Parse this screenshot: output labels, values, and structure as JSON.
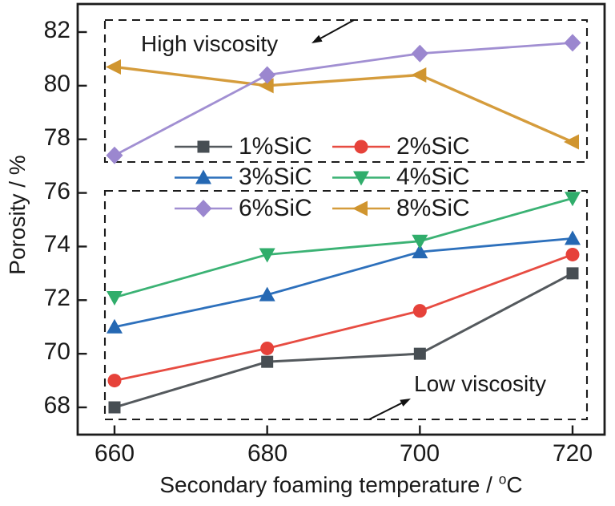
{
  "chart_data": {
    "type": "line",
    "title": "",
    "xlabel": "Secondary foaming temperature / °C",
    "xlabel_parts": {
      "prefix": "Secondary foaming temperature / ",
      "sup": "o",
      "unit": "C"
    },
    "ylabel": "Porosity / %",
    "x": [
      660,
      680,
      700,
      720
    ],
    "x_tick_labels": [
      "660",
      "680",
      "700",
      "720"
    ],
    "y_ticks": [
      82,
      80,
      78,
      76,
      74,
      72,
      70,
      68
    ],
    "y_tick_labels": [
      "82",
      "80",
      "78",
      "76",
      "74",
      "72",
      "70",
      "68"
    ],
    "xlim": [
      655,
      724
    ],
    "ylim": [
      67,
      83
    ],
    "grid": false,
    "legend_position": "inside middle, two columns",
    "series": [
      {
        "name": "1%SiC",
        "color": "#54595d",
        "marker_color": "#474e53",
        "marker": "square",
        "values": [
          68.0,
          69.7,
          70.0,
          73.0
        ]
      },
      {
        "name": "2%SiC",
        "color": "#e74c42",
        "marker_color": "#e6423a",
        "marker": "circle",
        "values": [
          69.0,
          70.2,
          71.6,
          73.7
        ]
      },
      {
        "name": "3%SiC",
        "color": "#2d70bc",
        "marker_color": "#2568b3",
        "marker": "triangle-up",
        "values": [
          71.0,
          72.2,
          73.8,
          74.3
        ]
      },
      {
        "name": "4%SiC",
        "color": "#3bb274",
        "marker_color": "#30ad6b",
        "marker": "triangle-down",
        "values": [
          72.1,
          73.7,
          74.2,
          75.8
        ]
      },
      {
        "name": "6%SiC",
        "color": "#a18fd2",
        "marker_color": "#9b87cf",
        "marker": "diamond",
        "values": [
          77.4,
          80.4,
          81.2,
          81.6
        ]
      },
      {
        "name": "8%SiC",
        "color": "#d59c3c",
        "marker_color": "#d0952f",
        "marker": "triangle-left",
        "values": [
          80.7,
          80.0,
          80.4,
          77.9
        ]
      }
    ],
    "annotations": [
      {
        "text": "High viscosity",
        "region": "upper dashed box"
      },
      {
        "text": "Low viscosity",
        "region": "lower dashed box"
      }
    ]
  }
}
